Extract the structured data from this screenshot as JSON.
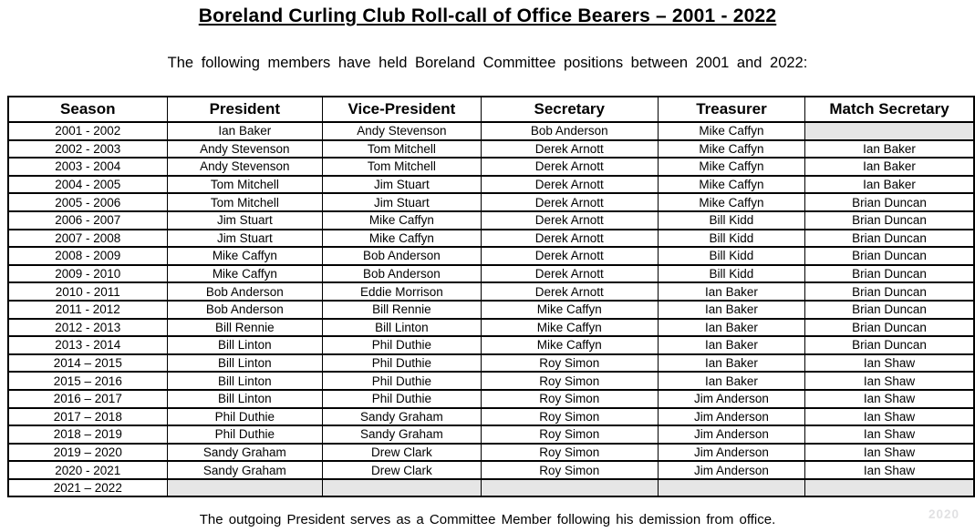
{
  "header": {
    "title": "Boreland Curling Club Roll-call of Office Bearers – 2001 - 2022",
    "subtitle": "The following members have held Boreland Committee positions between 2001 and 2022:"
  },
  "table": {
    "columns": [
      "Season",
      "President",
      "Vice-President",
      "Secretary",
      "Treasurer",
      "Match Secretary"
    ],
    "rows": [
      [
        "2001 - 2002",
        "Ian Baker",
        "Andy Stevenson",
        "Bob Anderson",
        "Mike Caffyn",
        ""
      ],
      [
        "2002 - 2003",
        "Andy Stevenson",
        "Tom Mitchell",
        "Derek Arnott",
        "Mike Caffyn",
        "Ian Baker"
      ],
      [
        "2003 - 2004",
        "Andy Stevenson",
        "Tom Mitchell",
        "Derek Arnott",
        "Mike Caffyn",
        "Ian Baker"
      ],
      [
        "2004 - 2005",
        "Tom Mitchell",
        "Jim Stuart",
        "Derek Arnott",
        "Mike Caffyn",
        "Ian Baker"
      ],
      [
        "2005 - 2006",
        "Tom Mitchell",
        "Jim Stuart",
        "Derek Arnott",
        "Mike Caffyn",
        "Brian Duncan"
      ],
      [
        "2006 - 2007",
        "Jim Stuart",
        "Mike Caffyn",
        "Derek Arnott",
        "Bill Kidd",
        "Brian Duncan"
      ],
      [
        "2007 - 2008",
        "Jim Stuart",
        "Mike Caffyn",
        "Derek Arnott",
        "Bill Kidd",
        "Brian Duncan"
      ],
      [
        "2008 - 2009",
        "Mike Caffyn",
        "Bob Anderson",
        "Derek Arnott",
        "Bill Kidd",
        "Brian Duncan"
      ],
      [
        "2009 - 2010",
        "Mike Caffyn",
        "Bob Anderson",
        "Derek Arnott",
        "Bill Kidd",
        "Brian Duncan"
      ],
      [
        "2010 - 2011",
        "Bob Anderson",
        "Eddie Morrison",
        "Derek Arnott",
        "Ian Baker",
        "Brian Duncan"
      ],
      [
        "2011 - 2012",
        "Bob Anderson",
        "Bill Rennie",
        "Mike Caffyn",
        "Ian Baker",
        "Brian Duncan"
      ],
      [
        "2012 - 2013",
        "Bill Rennie",
        "Bill Linton",
        "Mike Caffyn",
        "Ian Baker",
        "Brian Duncan"
      ],
      [
        "2013 - 2014",
        "Bill Linton",
        "Phil Duthie",
        "Mike Caffyn",
        "Ian Baker",
        "Brian Duncan"
      ],
      [
        "2014 – 2015",
        "Bill Linton",
        "Phil Duthie",
        "Roy Simon",
        "Ian Baker",
        "Ian Shaw"
      ],
      [
        "2015 – 2016",
        "Bill Linton",
        "Phil Duthie",
        "Roy Simon",
        "Ian Baker",
        "Ian Shaw"
      ],
      [
        "2016 – 2017",
        "Bill Linton",
        "Phil Duthie",
        "Roy Simon",
        "Jim Anderson",
        "Ian Shaw"
      ],
      [
        "2017 – 2018",
        "Phil Duthie",
        "Sandy Graham",
        "Roy Simon",
        "Jim Anderson",
        "Ian Shaw"
      ],
      [
        "2018 – 2019",
        "Phil Duthie",
        "Sandy Graham",
        "Roy Simon",
        "Jim Anderson",
        "Ian Shaw"
      ],
      [
        "2019 – 2020",
        "Sandy Graham",
        "Drew Clark",
        "Roy Simon",
        "Jim Anderson",
        "Ian Shaw"
      ],
      [
        "2020 - 2021",
        "Sandy Graham",
        "Drew Clark",
        "Roy Simon",
        "Jim Anderson",
        "Ian Shaw"
      ],
      [
        "2021 – 2022",
        "",
        "",
        "",
        "",
        ""
      ]
    ]
  },
  "footer": {
    "note": "The outgoing President serves as a Committee Member following his demission from office.",
    "watermark": "2020"
  },
  "colors": {
    "empty_cell_background": "#e6e6e6",
    "table_border": "#000000",
    "text": "#000000",
    "watermark": "#e1e1e3"
  }
}
